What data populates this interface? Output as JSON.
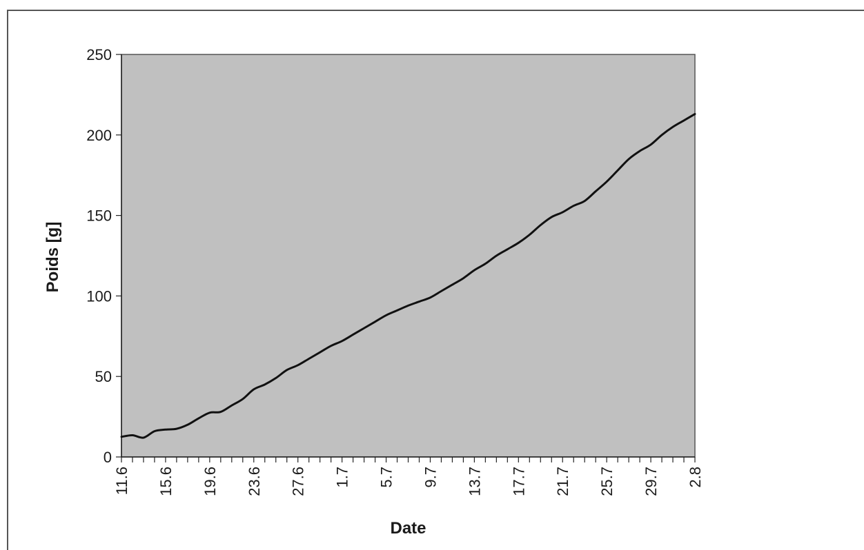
{
  "chart_data": {
    "type": "line",
    "title": "",
    "xlabel": "Date",
    "ylabel": "Poids [g]",
    "x_ticks": [
      "11.6",
      "15.6",
      "19.6",
      "23.6",
      "27.6",
      "1.7",
      "5.7",
      "9.7",
      "13.7",
      "17.7",
      "21.7",
      "25.7",
      "29.7",
      "2.8"
    ],
    "y_ticks": [
      0,
      50,
      100,
      150,
      200,
      250
    ],
    "ylim": [
      0,
      250
    ],
    "grid": false,
    "plot_background": "#c0c0c0",
    "line_color": "#111111",
    "x": [
      "11.6",
      "12.6",
      "13.6",
      "14.6",
      "15.6",
      "16.6",
      "17.6",
      "18.6",
      "19.6",
      "20.6",
      "21.6",
      "22.6",
      "23.6",
      "24.6",
      "25.6",
      "26.6",
      "27.6",
      "28.6",
      "29.6",
      "30.6",
      "1.7",
      "2.7",
      "3.7",
      "4.7",
      "5.7",
      "6.7",
      "7.7",
      "8.7",
      "9.7",
      "10.7",
      "11.7",
      "12.7",
      "13.7",
      "14.7",
      "15.7",
      "16.7",
      "17.7",
      "18.7",
      "19.7",
      "20.7",
      "21.7",
      "22.7",
      "23.7",
      "24.7",
      "25.7",
      "26.7",
      "27.7",
      "28.7",
      "29.7",
      "30.7",
      "31.7",
      "1.8",
      "2.8"
    ],
    "series": [
      {
        "values": [
          12.5,
          13.5,
          12,
          16,
          17,
          17.5,
          20,
          24,
          27.5,
          28,
          32,
          36,
          42,
          45,
          49,
          54,
          57,
          61,
          65,
          69,
          72,
          76,
          80,
          84,
          88,
          91,
          94,
          96.5,
          99,
          103,
          107,
          111,
          116,
          120,
          125,
          129,
          133,
          138,
          144,
          149,
          152,
          156,
          159,
          165,
          171,
          178,
          185,
          190,
          194,
          200,
          205,
          209,
          213
        ]
      }
    ]
  }
}
